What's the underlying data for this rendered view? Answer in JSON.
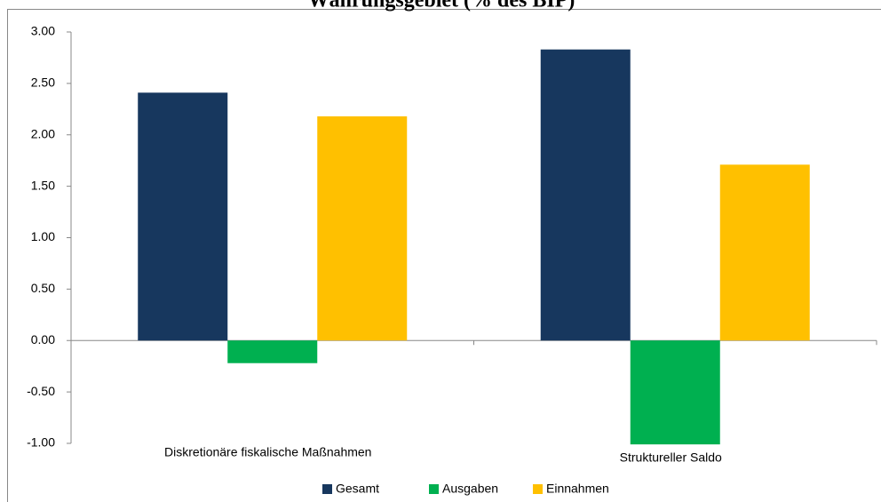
{
  "chart_data": {
    "type": "bar",
    "title": "Währungsgebiet (% des BIP)",
    "categories": [
      "Diskretionäre  fiskalische Maßnahmen",
      "Struktureller Saldo"
    ],
    "series": [
      {
        "name": "Gesamt",
        "color": "#17375e",
        "values": [
          2.41,
          2.83
        ]
      },
      {
        "name": "Ausgaben",
        "color": "#00b050",
        "values": [
          -0.22,
          -1.01
        ]
      },
      {
        "name": "Einnahmen",
        "color": "#ffc000",
        "values": [
          2.18,
          1.71
        ]
      }
    ],
    "ylim": [
      -1,
      3
    ],
    "yticks": [
      {
        "value": -1,
        "label": "-1.00"
      },
      {
        "value": -0.5,
        "label": "-0.50"
      },
      {
        "value": 0,
        "label": "0.00"
      },
      {
        "value": 0.5,
        "label": "0.50"
      },
      {
        "value": 1,
        "label": "1.00"
      },
      {
        "value": 1.5,
        "label": "1.50"
      },
      {
        "value": 2,
        "label": "2.00"
      },
      {
        "value": 2.5,
        "label": "2.50"
      },
      {
        "value": 3,
        "label": "3.00"
      }
    ],
    "grid": false,
    "legend": "bottom"
  }
}
